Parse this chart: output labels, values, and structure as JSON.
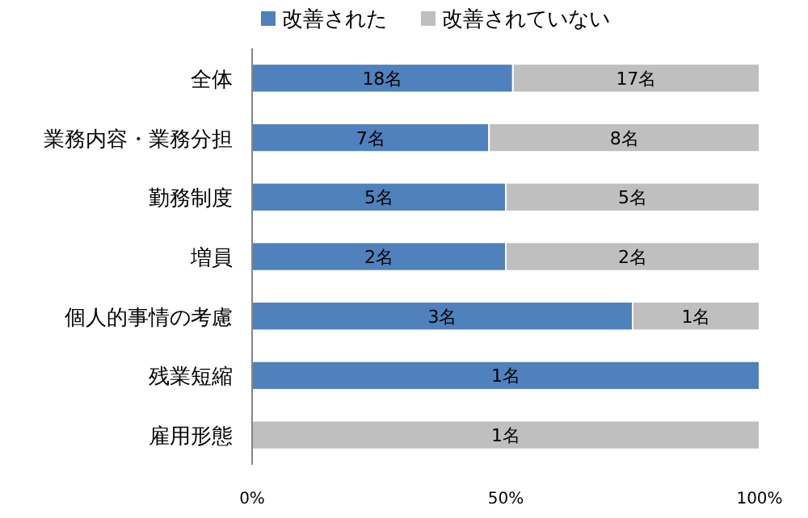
{
  "chart_data": {
    "type": "bar",
    "orientation": "horizontal",
    "stacked": true,
    "categories": [
      "全体",
      "業務内容・業務分担",
      "勤務制度",
      "増員",
      "個人的事情の考慮",
      "残業短縮",
      "雇用形態"
    ],
    "series": [
      {
        "name": "改善された",
        "color": "#4f81bd",
        "values": [
          51.4,
          46.7,
          50,
          50,
          75,
          100,
          0
        ]
      },
      {
        "name": "改善されていない",
        "color": "#bfbfbf",
        "values": [
          48.6,
          53.3,
          50,
          50,
          25,
          0,
          100
        ]
      }
    ],
    "annotations": [
      "18名",
      "17名",
      "7名",
      "8名",
      "5名",
      "5名",
      "2名",
      "2名",
      "3名",
      "1名",
      "1名",
      "1名"
    ],
    "xlim": [
      0,
      100
    ],
    "xticks": [
      {
        "value": 0,
        "label": "0%"
      },
      {
        "value": 50,
        "label": "50%"
      },
      {
        "value": 100,
        "label": "100%"
      }
    ],
    "legend": "top",
    "grid": false
  }
}
